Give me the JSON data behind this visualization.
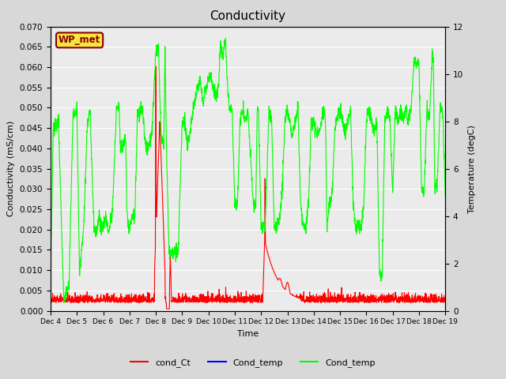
{
  "title": "Conductivity",
  "xlabel": "Time",
  "ylabel_left": "Conductivity (mS/cm)",
  "ylabel_right": "Temperature (degC)",
  "ylim_left": [
    0.0,
    0.07
  ],
  "ylim_right": [
    0,
    12
  ],
  "yticks_left": [
    0.0,
    0.005,
    0.01,
    0.015,
    0.02,
    0.025,
    0.03,
    0.035,
    0.04,
    0.045,
    0.05,
    0.055,
    0.06,
    0.065,
    0.07
  ],
  "yticks_right": [
    0,
    2,
    4,
    6,
    8,
    10,
    12
  ],
  "xtick_labels": [
    "Dec 4",
    "Dec 5",
    "Dec 6",
    "Dec 7",
    "Dec 8",
    "Dec 9",
    "Dec 10",
    "Dec 11",
    "Dec 12",
    "Dec 13",
    "Dec 14",
    "Dec 15",
    "Dec 16",
    "Dec 17",
    "Dec 18",
    "Dec 19"
  ],
  "fig_bg_color": "#d8d8d8",
  "plot_bg_color": "#ebebeb",
  "grid_color": "white",
  "legend_labels": [
    "cond_Ct",
    "Cond_temp",
    "Cond_temp"
  ],
  "legend_colors": [
    "red",
    "blue",
    "lime"
  ],
  "watermark_text": "WP_met",
  "watermark_bg": "#f5e642",
  "watermark_fg": "#8b0000",
  "green_keypoints": [
    [
      0.0,
      1.0
    ],
    [
      0.1,
      7.7
    ],
    [
      0.3,
      8.0
    ],
    [
      0.5,
      0.5
    ],
    [
      0.7,
      1.0
    ],
    [
      0.85,
      8.2
    ],
    [
      1.0,
      8.5
    ],
    [
      1.1,
      1.5
    ],
    [
      1.25,
      3.5
    ],
    [
      1.4,
      7.9
    ],
    [
      1.5,
      8.5
    ],
    [
      1.65,
      3.5
    ],
    [
      1.75,
      3.3
    ],
    [
      1.85,
      4.2
    ],
    [
      1.9,
      3.5
    ],
    [
      2.0,
      3.5
    ],
    [
      2.1,
      4.0
    ],
    [
      2.2,
      3.3
    ],
    [
      2.35,
      4.3
    ],
    [
      2.5,
      8.5
    ],
    [
      2.6,
      8.7
    ],
    [
      2.65,
      7.0
    ],
    [
      2.75,
      6.9
    ],
    [
      2.85,
      7.5
    ],
    [
      2.9,
      4.0
    ],
    [
      3.0,
      3.5
    ],
    [
      3.1,
      4.0
    ],
    [
      3.2,
      4.0
    ],
    [
      3.3,
      8.3
    ],
    [
      3.5,
      8.5
    ],
    [
      3.6,
      7.0
    ],
    [
      3.7,
      6.9
    ],
    [
      3.85,
      7.5
    ],
    [
      4.0,
      11.0
    ],
    [
      4.1,
      11.2
    ],
    [
      4.15,
      9.2
    ],
    [
      4.2,
      7.5
    ],
    [
      4.3,
      7.0
    ],
    [
      4.35,
      11.2
    ],
    [
      4.4,
      7.0
    ],
    [
      4.5,
      2.5
    ],
    [
      4.6,
      2.5
    ],
    [
      4.65,
      2.5
    ],
    [
      4.7,
      2.5
    ],
    [
      4.75,
      2.5
    ],
    [
      4.85,
      2.5
    ],
    [
      5.0,
      8.0
    ],
    [
      5.1,
      8.0
    ],
    [
      5.15,
      7.5
    ],
    [
      5.2,
      7.0
    ],
    [
      5.3,
      7.5
    ],
    [
      5.4,
      8.5
    ],
    [
      5.5,
      9.0
    ],
    [
      5.6,
      9.5
    ],
    [
      5.7,
      9.7
    ],
    [
      5.75,
      9.0
    ],
    [
      5.8,
      8.7
    ],
    [
      5.9,
      9.5
    ],
    [
      6.0,
      9.8
    ],
    [
      6.1,
      10.0
    ],
    [
      6.15,
      9.5
    ],
    [
      6.2,
      9.3
    ],
    [
      6.3,
      9.0
    ],
    [
      6.4,
      9.7
    ],
    [
      6.45,
      11.2
    ],
    [
      6.5,
      11.0
    ],
    [
      6.55,
      10.5
    ],
    [
      6.6,
      11.2
    ],
    [
      6.65,
      11.3
    ],
    [
      6.7,
      10.0
    ],
    [
      6.75,
      9.0
    ],
    [
      6.8,
      8.5
    ],
    [
      6.9,
      8.5
    ],
    [
      7.0,
      4.5
    ],
    [
      7.1,
      4.5
    ],
    [
      7.2,
      8.0
    ],
    [
      7.3,
      8.5
    ],
    [
      7.4,
      8.0
    ],
    [
      7.5,
      8.5
    ],
    [
      7.6,
      6.5
    ],
    [
      7.7,
      4.5
    ],
    [
      7.75,
      4.3
    ],
    [
      7.8,
      4.5
    ],
    [
      7.85,
      8.5
    ],
    [
      7.9,
      8.5
    ],
    [
      8.0,
      3.5
    ],
    [
      8.1,
      3.5
    ],
    [
      8.15,
      3.5
    ],
    [
      8.2,
      5.0
    ],
    [
      8.3,
      8.5
    ],
    [
      8.4,
      8.0
    ],
    [
      8.5,
      3.5
    ],
    [
      8.6,
      3.5
    ],
    [
      8.7,
      4.0
    ],
    [
      8.8,
      5.0
    ],
    [
      8.9,
      8.0
    ],
    [
      9.0,
      8.5
    ],
    [
      9.1,
      8.0
    ],
    [
      9.15,
      7.5
    ],
    [
      9.2,
      7.5
    ],
    [
      9.3,
      8.0
    ],
    [
      9.4,
      8.5
    ],
    [
      9.5,
      4.5
    ],
    [
      9.6,
      3.5
    ],
    [
      9.7,
      3.5
    ],
    [
      9.8,
      4.5
    ],
    [
      9.9,
      8.0
    ],
    [
      10.0,
      8.0
    ],
    [
      10.1,
      7.5
    ],
    [
      10.2,
      7.5
    ],
    [
      10.3,
      8.0
    ],
    [
      10.4,
      8.5
    ],
    [
      10.45,
      8.0
    ],
    [
      10.5,
      3.5
    ],
    [
      10.6,
      4.5
    ],
    [
      10.7,
      5.0
    ],
    [
      10.8,
      7.5
    ],
    [
      10.85,
      8.0
    ],
    [
      11.0,
      8.5
    ],
    [
      11.1,
      8.0
    ],
    [
      11.2,
      7.5
    ],
    [
      11.3,
      8.0
    ],
    [
      11.4,
      8.5
    ],
    [
      11.5,
      4.5
    ],
    [
      11.6,
      3.5
    ],
    [
      11.7,
      3.5
    ],
    [
      11.8,
      3.5
    ],
    [
      11.9,
      4.5
    ],
    [
      12.0,
      8.0
    ],
    [
      12.1,
      8.5
    ],
    [
      12.2,
      8.0
    ],
    [
      12.3,
      7.5
    ],
    [
      12.4,
      8.0
    ],
    [
      12.5,
      1.5
    ],
    [
      12.6,
      1.5
    ],
    [
      12.7,
      8.0
    ],
    [
      12.8,
      8.5
    ],
    [
      12.9,
      8.0
    ],
    [
      13.0,
      5.0
    ],
    [
      13.1,
      8.5
    ],
    [
      13.2,
      8.0
    ],
    [
      13.3,
      8.5
    ],
    [
      13.4,
      8.0
    ],
    [
      13.5,
      8.5
    ],
    [
      13.6,
      8.0
    ],
    [
      13.7,
      8.5
    ],
    [
      13.8,
      10.5
    ],
    [
      13.9,
      10.5
    ],
    [
      14.0,
      10.5
    ],
    [
      14.1,
      5.0
    ],
    [
      14.2,
      5.0
    ],
    [
      14.3,
      8.5
    ],
    [
      14.4,
      8.0
    ],
    [
      14.5,
      10.8
    ],
    [
      14.55,
      10.5
    ],
    [
      14.6,
      5.0
    ],
    [
      14.7,
      5.5
    ],
    [
      14.8,
      8.5
    ],
    [
      14.9,
      8.5
    ],
    [
      15.0,
      5.0
    ]
  ]
}
